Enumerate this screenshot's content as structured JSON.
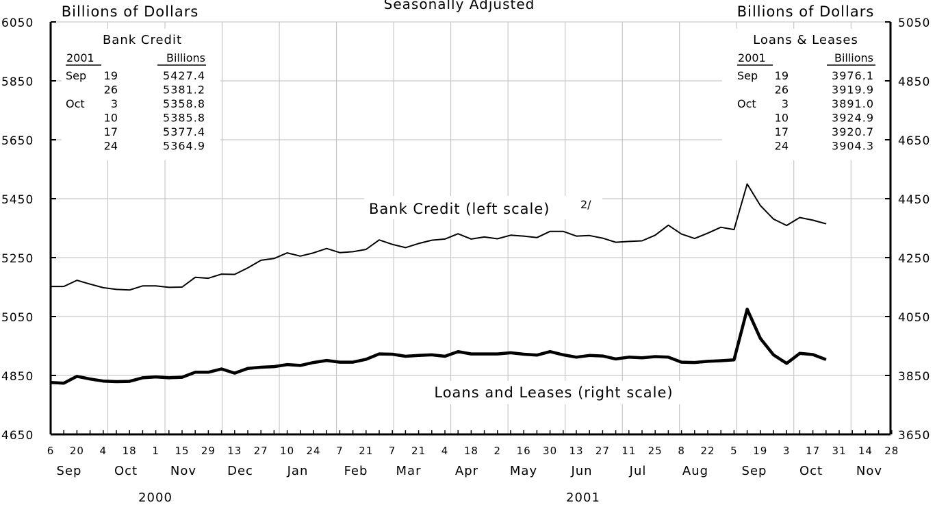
{
  "header": {
    "subtitle": "Seasonally Adjusted",
    "left_unit": "Billions of Dollars",
    "right_unit": "Billions of Dollars"
  },
  "inset_left": {
    "title": "Bank Credit",
    "col_year": "2001",
    "col_value": "Billions",
    "rows": [
      {
        "month": "Sep",
        "day": "19",
        "value": "5427.4"
      },
      {
        "month": "",
        "day": "26",
        "value": "5381.2"
      },
      {
        "month": "Oct",
        "day": "3",
        "value": "5358.8"
      },
      {
        "month": "",
        "day": "10",
        "value": "5385.8"
      },
      {
        "month": "",
        "day": "17",
        "value": "5377.4"
      },
      {
        "month": "",
        "day": "24",
        "value": "5364.9"
      }
    ]
  },
  "inset_right": {
    "title": "Loans & Leases",
    "col_year": "2001",
    "col_value": "Billions",
    "rows": [
      {
        "month": "Sep",
        "day": "19",
        "value": "3976.1"
      },
      {
        "month": "",
        "day": "26",
        "value": "3919.9"
      },
      {
        "month": "Oct",
        "day": "3",
        "value": "3891.0"
      },
      {
        "month": "",
        "day": "10",
        "value": "3924.9"
      },
      {
        "month": "",
        "day": "17",
        "value": "3920.7"
      },
      {
        "month": "",
        "day": "24",
        "value": "3904.3"
      }
    ]
  },
  "chart_data": {
    "type": "line",
    "title": "",
    "subtitle": "Seasonally Adjusted",
    "x_tick_labels": [
      "6",
      "20",
      "4",
      "18",
      "1",
      "15",
      "29",
      "13",
      "27",
      "10",
      "24",
      "7",
      "21",
      "7",
      "21",
      "4",
      "18",
      "2",
      "16",
      "30",
      "13",
      "27",
      "11",
      "25",
      "8",
      "22",
      "5",
      "19",
      "3",
      "17",
      "31",
      "14",
      "28"
    ],
    "month_labels": [
      "Sep",
      "Oct",
      "Nov",
      "Dec",
      "Jan",
      "Feb",
      "Mar",
      "Apr",
      "May",
      "Jun",
      "Jul",
      "Aug",
      "Sep",
      "Oct",
      "Nov"
    ],
    "year_labels": [
      "2000",
      "2001"
    ],
    "y_left": {
      "label": "Billions of Dollars",
      "lim": [
        4650,
        6050
      ],
      "ticks": [
        4650,
        4850,
        5050,
        5250,
        5450,
        5650,
        5850,
        6050
      ]
    },
    "y_right": {
      "label": "Billions of Dollars",
      "lim": [
        3650,
        5050
      ],
      "ticks": [
        3650,
        3850,
        4050,
        4250,
        4450,
        4650,
        4850,
        5050
      ]
    },
    "grid": true,
    "series": [
      {
        "name": "Bank Credit (left scale)",
        "footnote": "2/",
        "axis": "left",
        "values": [
          5152,
          5152,
          5173,
          5160,
          5148,
          5142,
          5140,
          5154,
          5154,
          5149,
          5150,
          5183,
          5180,
          5194,
          5193,
          5215,
          5241,
          5247,
          5266,
          5255,
          5266,
          5281,
          5267,
          5270,
          5278,
          5310,
          5295,
          5284,
          5298,
          5309,
          5313,
          5331,
          5313,
          5320,
          5314,
          5326,
          5323,
          5318,
          5339,
          5339,
          5323,
          5325,
          5316,
          5302,
          5305,
          5307,
          5326,
          5360,
          5330,
          5315,
          5333,
          5353,
          5345,
          5500,
          5427,
          5381,
          5359,
          5386,
          5377,
          5365
        ]
      },
      {
        "name": "Loans and Leases (right scale)",
        "axis": "right",
        "values": [
          3826,
          3824,
          3847,
          3838,
          3831,
          3829,
          3830,
          3842,
          3845,
          3842,
          3844,
          3861,
          3861,
          3872,
          3858,
          3874,
          3878,
          3880,
          3887,
          3884,
          3894,
          3901,
          3895,
          3895,
          3905,
          3923,
          3922,
          3915,
          3918,
          3920,
          3915,
          3931,
          3923,
          3923,
          3923,
          3927,
          3922,
          3919,
          3931,
          3920,
          3912,
          3918,
          3916,
          3906,
          3912,
          3910,
          3914,
          3912,
          3895,
          3894,
          3898,
          3900,
          3903,
          4075,
          3976,
          3920,
          3891,
          3925,
          3921,
          3904
        ]
      }
    ],
    "annotations": [
      "Bank Credit (left scale)",
      "2/",
      "Loans and Leases (right scale)"
    ]
  }
}
